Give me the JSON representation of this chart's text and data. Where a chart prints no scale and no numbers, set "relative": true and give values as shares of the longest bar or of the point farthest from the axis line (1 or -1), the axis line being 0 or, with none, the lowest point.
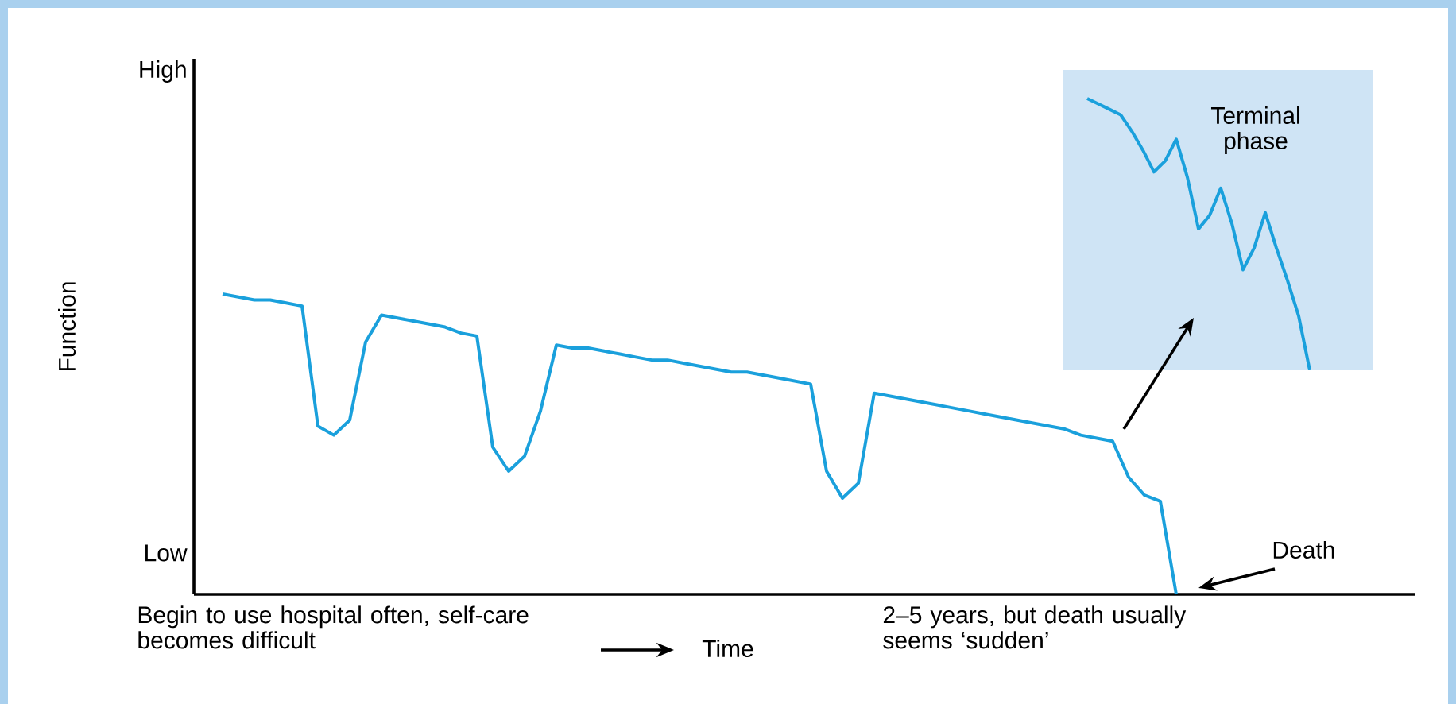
{
  "chart_data": [
    {
      "type": "line",
      "relative": true,
      "ylabel": "Function",
      "categories": [
        null,
        null,
        null,
        null,
        null,
        null,
        null,
        null,
        null,
        null,
        null,
        null,
        null,
        null,
        null,
        null,
        null,
        null,
        null,
        null,
        null,
        null,
        null,
        null,
        null,
        null,
        null,
        null,
        null,
        null,
        null,
        null,
        null,
        null,
        null,
        null,
        null,
        null,
        null,
        null,
        null,
        null,
        null,
        null,
        null,
        null,
        null,
        null,
        null,
        null,
        null,
        null,
        null,
        null,
        null,
        null,
        null,
        null,
        null,
        null,
        null
      ],
      "series": [
        {
          "color": "#1aa0dc",
          "values": [
            1.0,
            0.99,
            0.98,
            0.98,
            0.97,
            0.96,
            0.56,
            0.53,
            0.58,
            0.84,
            0.93,
            0.92,
            0.91,
            0.9,
            0.89,
            0.87,
            0.86,
            0.49,
            0.41,
            0.46,
            0.61,
            0.83,
            0.82,
            0.82,
            0.81,
            0.8,
            0.79,
            0.78,
            0.78,
            0.77,
            0.76,
            0.75,
            0.74,
            0.74,
            0.73,
            0.72,
            0.71,
            0.7,
            0.41,
            0.32,
            0.37,
            0.67,
            0.66,
            0.65,
            0.64,
            0.63,
            0.62,
            0.61,
            0.6,
            0.59,
            0.58,
            0.57,
            0.56,
            0.55,
            0.53,
            0.52,
            0.51,
            0.39,
            0.33,
            0.31,
            0.0
          ]
        }
      ],
      "annotations": [
        "High",
        "Low",
        "Death",
        "Begin to use hospital often, self-care becomes difficult",
        "Time",
        "2–5 years, but death usually seems ‘sudden’"
      ]
    },
    {
      "type": "line",
      "relative": true,
      "categories": [
        null,
        null,
        null,
        null,
        null,
        null,
        null,
        null,
        null,
        null,
        null,
        null,
        null,
        null,
        null,
        null,
        null,
        null,
        null,
        null,
        null
      ],
      "series": [
        {
          "color": "#1aa0dc",
          "values": [
            1.0,
            0.98,
            0.96,
            0.94,
            0.88,
            0.81,
            0.73,
            0.77,
            0.85,
            0.71,
            0.52,
            0.57,
            0.67,
            0.54,
            0.37,
            0.45,
            0.58,
            0.45,
            0.33,
            0.2,
            0.0
          ]
        }
      ],
      "annotations": [
        "Terminal phase"
      ]
    }
  ]
}
